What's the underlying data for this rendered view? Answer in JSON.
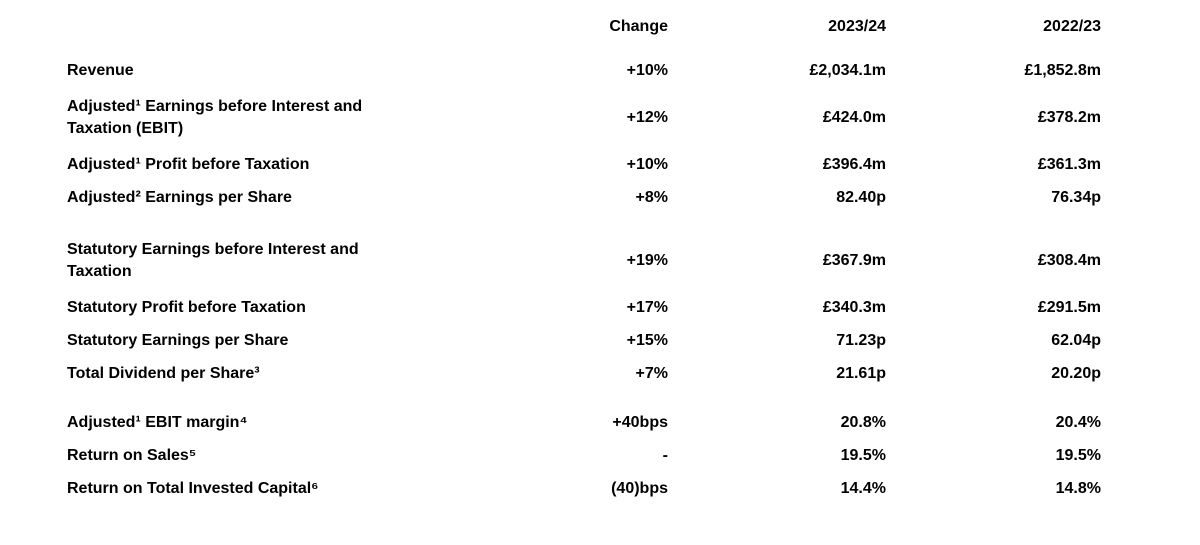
{
  "document": {
    "header": {
      "label": "",
      "change": "Change",
      "current_period": "2023/24",
      "prior_period": "2022/23"
    },
    "rows": [
      {
        "label": "Revenue",
        "change": "+10%",
        "current": "£2,034.1m",
        "prior": "£1,852.8m"
      },
      {
        "label": "Adjusted¹ Earnings before Interest and Taxation (EBIT)",
        "change": "+12%",
        "current": "£424.0m",
        "prior": "£378.2m"
      },
      {
        "label": "Adjusted¹ Profit before Taxation",
        "change": "+10%",
        "current": "£396.4m",
        "prior": "£361.3m"
      },
      {
        "label": "Adjusted² Earnings per Share",
        "change": "+8%",
        "current": "82.40p",
        "prior": "76.34p"
      },
      {
        "label": "Statutory Earnings before Interest and Taxation",
        "change": "+19%",
        "current": "£367.9m",
        "prior": "£308.4m"
      },
      {
        "label": "Statutory Profit before Taxation",
        "change": "+17%",
        "current": "£340.3m",
        "prior": "£291.5m"
      },
      {
        "label": "Statutory Earnings per Share",
        "change": "+15%",
        "current": "71.23p",
        "prior": "62.04p"
      },
      {
        "label": "Total Dividend per Share³",
        "change": "+7%",
        "current": "21.61p",
        "prior": "20.20p"
      },
      {
        "label": "Adjusted¹ EBIT margin⁴",
        "change": "+40bps",
        "current": "20.8%",
        "prior": "20.4%"
      },
      {
        "label": "Return on Sales⁵",
        "change": "-",
        "current": "19.5%",
        "prior": "19.5%"
      },
      {
        "label": "Return on Total Invested Capital⁶",
        "change": "(40)bps",
        "current": "14.4%",
        "prior": "14.8%"
      }
    ],
    "colors": {
      "background": "#ffffff",
      "text": "#000000"
    }
  }
}
